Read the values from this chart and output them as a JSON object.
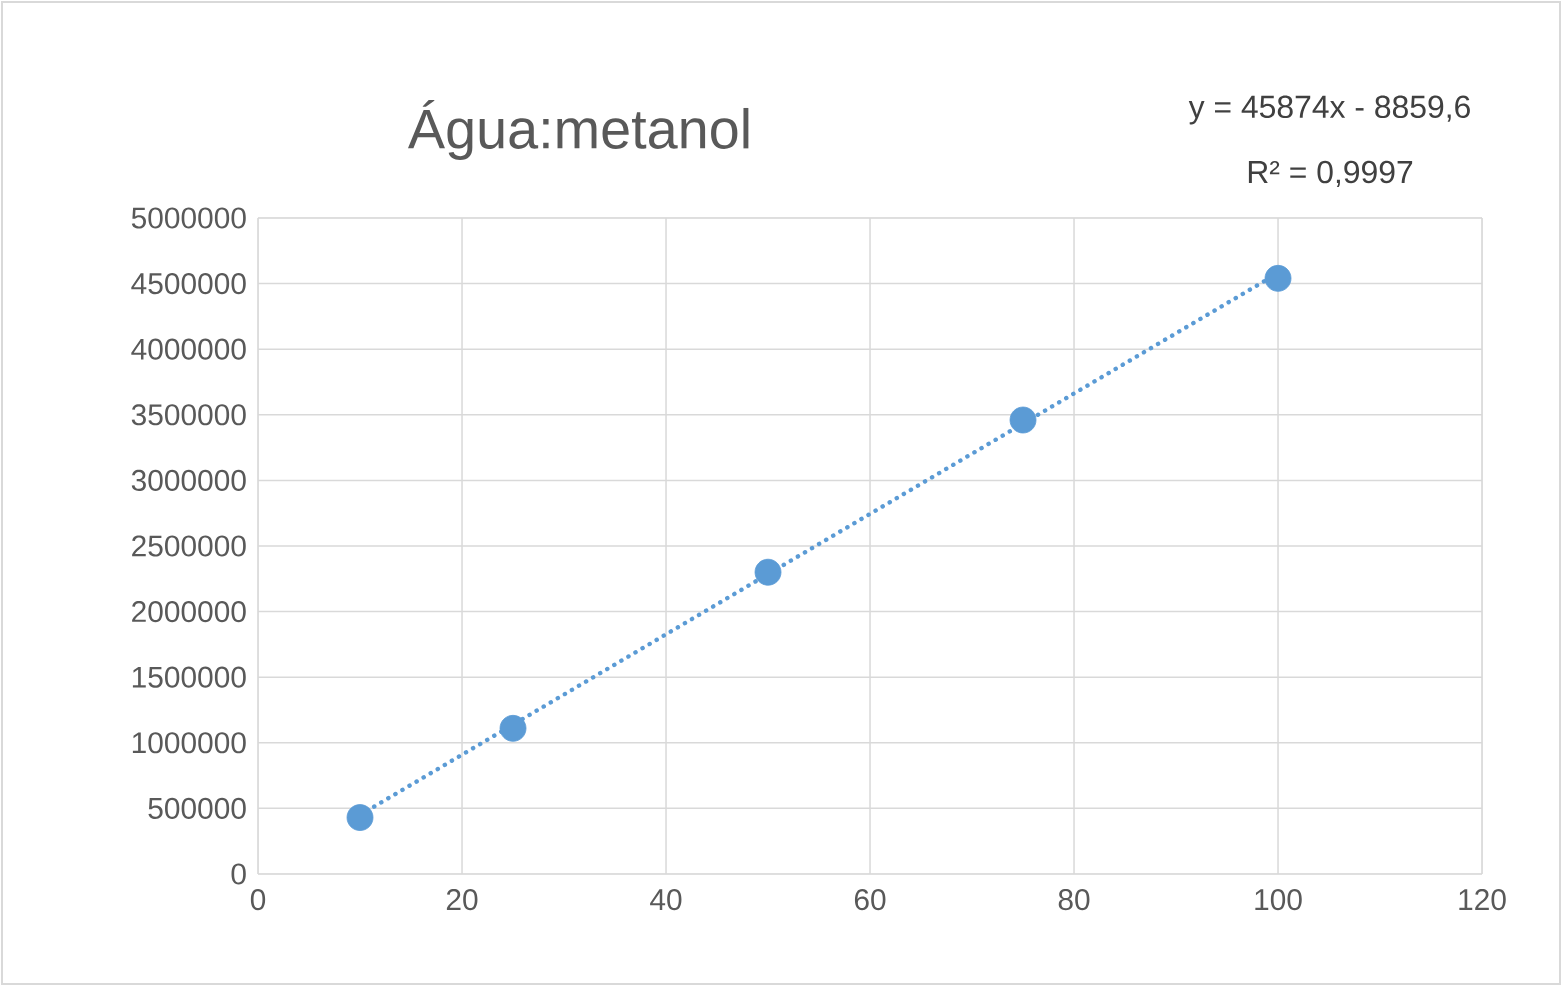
{
  "chart_data": {
    "type": "scatter",
    "title": "Água:metanol",
    "annotations": [
      "y = 45874x - 8859,6",
      "R² = 0,9997"
    ],
    "series": [
      {
        "type": "scatter",
        "color": "#5b9bd5",
        "marker": "circle",
        "x": [
          10,
          25,
          50,
          75,
          100
        ],
        "values": [
          430000,
          1110000,
          2300000,
          3460000,
          4540000
        ]
      },
      {
        "type": "line",
        "color": "#5b9bd5",
        "line_style": "dotted",
        "marker": "none",
        "x": [
          10,
          100
        ],
        "values": [
          450000,
          4580000
        ]
      }
    ],
    "xlim": [
      0,
      120
    ],
    "xticks": [
      0,
      20,
      40,
      60,
      80,
      100,
      120
    ],
    "ylim": [
      0,
      5000000
    ],
    "yticks": [
      0,
      500000,
      1000000,
      1500000,
      2000000,
      2500000,
      3000000,
      3500000,
      4000000,
      4500000,
      5000000
    ],
    "grid": true
  }
}
